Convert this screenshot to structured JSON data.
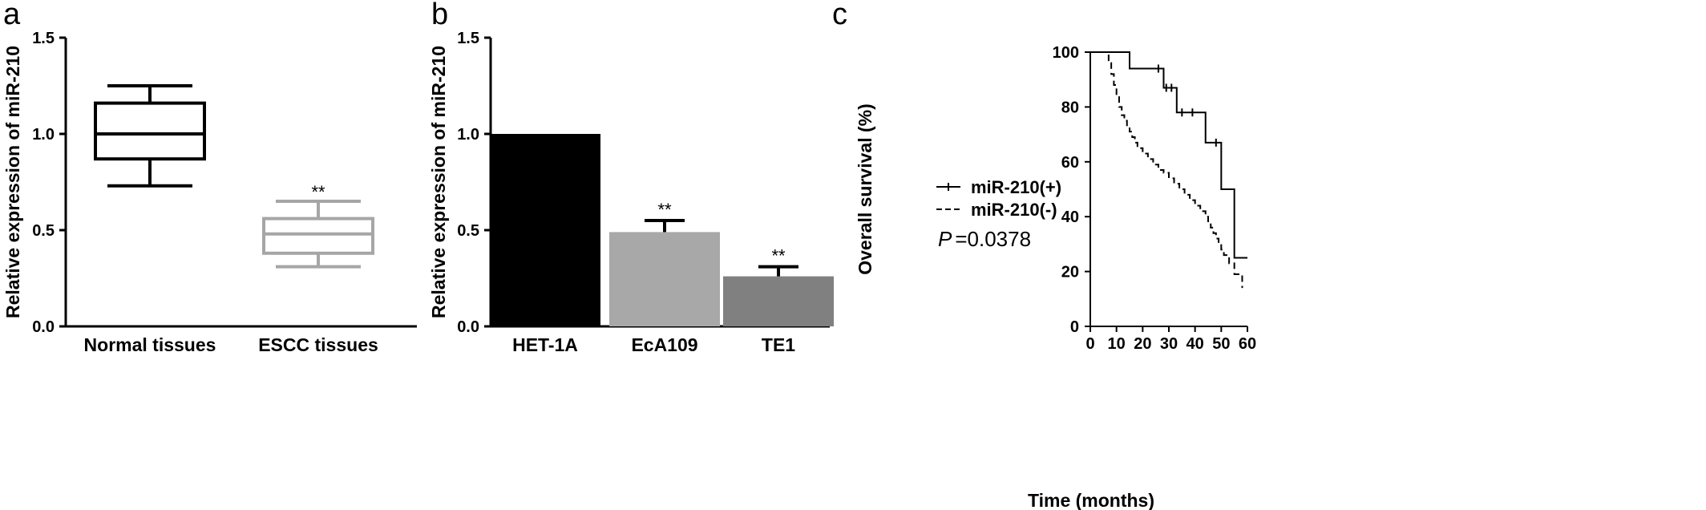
{
  "chart_data": [
    {
      "panel": "a",
      "type": "box",
      "ylabel": "Relative expression of miR-210",
      "ylim": [
        0,
        1.5
      ],
      "yticks": [
        "0.0",
        "0.5",
        "1.0",
        "1.5"
      ],
      "categories": [
        "Normal tissues",
        "ESCC tissues"
      ],
      "boxes": [
        {
          "min": 0.73,
          "q1": 0.87,
          "median": 1.0,
          "q3": 1.16,
          "max": 1.25,
          "color": "#000000",
          "significance": ""
        },
        {
          "min": 0.31,
          "q1": 0.38,
          "median": 0.48,
          "q3": 0.56,
          "max": 0.65,
          "color": "#a6a6a6",
          "significance": "**"
        }
      ]
    },
    {
      "panel": "b",
      "type": "bar",
      "ylabel": "Relative expression of miR-210",
      "ylim": [
        0,
        1.5
      ],
      "yticks": [
        "0.0",
        "0.5",
        "1.0",
        "1.5"
      ],
      "categories": [
        "HET-1A",
        "EcA109",
        "TE1"
      ],
      "values": [
        1.0,
        0.49,
        0.26
      ],
      "errors": [
        0,
        0.06,
        0.05
      ],
      "colors": [
        "#000000",
        "#a8a8a8",
        "#808080"
      ],
      "significance": [
        "",
        "**",
        "**"
      ]
    },
    {
      "panel": "c",
      "type": "line",
      "xlabel": "Time (months)",
      "ylabel": "Overall survival (%)",
      "xlim": [
        0,
        60
      ],
      "ylim": [
        0,
        100
      ],
      "xticks": [
        "0",
        "10",
        "20",
        "30",
        "40",
        "50",
        "60"
      ],
      "yticks": [
        "0",
        "20",
        "40",
        "60",
        "80",
        "100"
      ],
      "legend_position": "left",
      "p_label": "P",
      "p_value": "=0.0378",
      "series": [
        {
          "name": "miR-210(+)",
          "style": "solid",
          "x": [
            0,
            15,
            28,
            33,
            44,
            50,
            55,
            60
          ],
          "y": [
            100,
            94,
            87,
            78,
            67,
            50,
            25,
            25
          ],
          "censor_x": [
            26,
            29,
            31,
            35,
            39,
            48
          ],
          "censor_y": [
            94,
            87,
            87,
            78,
            78,
            67
          ]
        },
        {
          "name": "miR-210(-)",
          "style": "dashed",
          "x": [
            0,
            7,
            8,
            9,
            10,
            11,
            12,
            13,
            14,
            15,
            16,
            17,
            18,
            20,
            22,
            24,
            26,
            28,
            30,
            32,
            34,
            36,
            38,
            40,
            42,
            44,
            45,
            46,
            47,
            48,
            49,
            50,
            51,
            53,
            55,
            58
          ],
          "y": [
            100,
            96,
            92,
            88,
            84,
            80,
            77,
            75,
            73,
            71,
            69,
            67,
            65,
            63,
            61,
            59,
            57,
            56,
            54,
            52,
            50,
            48,
            46,
            44,
            42,
            40,
            38,
            36,
            34,
            32,
            30,
            28,
            26,
            23,
            19,
            14
          ],
          "censor_x": [],
          "censor_y": []
        }
      ]
    }
  ]
}
